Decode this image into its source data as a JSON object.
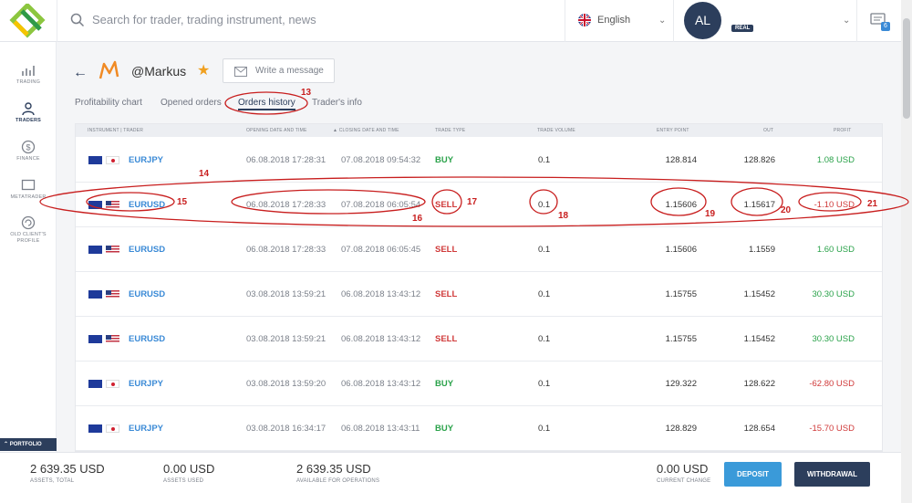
{
  "search": {
    "placeholder": "Search for trader, trading instrument, news"
  },
  "language": {
    "label": "English"
  },
  "account": {
    "initials": "AL",
    "badge": "REAL"
  },
  "messages": {
    "count": "6"
  },
  "sidebar": {
    "items": [
      {
        "label": "TRADING",
        "icon": "chart-icon"
      },
      {
        "label": "TRADERS",
        "icon": "traders-icon"
      },
      {
        "label": "FINANCE",
        "icon": "dollar-icon"
      },
      {
        "label": "METATRADER",
        "icon": "monitor-icon"
      },
      {
        "label": "OLD CLIENT'S PROFILE",
        "icon": "refresh-icon"
      }
    ],
    "portfolio": "PORTFOLIO"
  },
  "trader": {
    "name": "@Markus",
    "write_message": "Write a message"
  },
  "tabs": [
    {
      "label": "Profitability chart"
    },
    {
      "label": "Opened orders"
    },
    {
      "label": "Orders history"
    },
    {
      "label": "Trader's info"
    }
  ],
  "table": {
    "headers": {
      "instrument": "INSTRUMENT | TRADER",
      "opening": "OPENING DATE AND TIME",
      "closing": "▲ CLOSING DATE AND TIME",
      "type": "TRADE TYPE",
      "volume": "TRADE VOLUME",
      "entry": "ENTRY POINT",
      "out": "OUT",
      "profit": "PROFIT"
    },
    "rows": [
      {
        "instrument": "EURJPY",
        "quote_flag": "jp",
        "opening": "06.08.2018 17:28:31",
        "closing": "07.08.2018 09:54:32",
        "type": "BUY",
        "volume": "0.1",
        "entry": "128.814",
        "out": "128.826",
        "profit": "1.08 USD"
      },
      {
        "instrument": "EURUSD",
        "quote_flag": "us",
        "opening": "06.08.2018 17:28:33",
        "closing": "07.08.2018 06:05:54",
        "type": "SELL",
        "volume": "0.1",
        "entry": "1.15606",
        "out": "1.15617",
        "profit": "-1.10 USD"
      },
      {
        "instrument": "EURUSD",
        "quote_flag": "us",
        "opening": "06.08.2018 17:28:33",
        "closing": "07.08.2018 06:05:45",
        "type": "SELL",
        "volume": "0.1",
        "entry": "1.15606",
        "out": "1.1559",
        "profit": "1.60 USD"
      },
      {
        "instrument": "EURUSD",
        "quote_flag": "us",
        "opening": "03.08.2018 13:59:21",
        "closing": "06.08.2018 13:43:12",
        "type": "SELL",
        "volume": "0.1",
        "entry": "1.15755",
        "out": "1.15452",
        "profit": "30.30 USD"
      },
      {
        "instrument": "EURUSD",
        "quote_flag": "us",
        "opening": "03.08.2018 13:59:21",
        "closing": "06.08.2018 13:43:12",
        "type": "SELL",
        "volume": "0.1",
        "entry": "1.15755",
        "out": "1.15452",
        "profit": "30.30 USD"
      },
      {
        "instrument": "EURJPY",
        "quote_flag": "jp",
        "opening": "03.08.2018 13:59:20",
        "closing": "06.08.2018 13:43:12",
        "type": "BUY",
        "volume": "0.1",
        "entry": "129.322",
        "out": "128.622",
        "profit": "-62.80 USD"
      },
      {
        "instrument": "EURJPY",
        "quote_flag": "jp",
        "opening": "03.08.2018 16:34:17",
        "closing": "06.08.2018 13:43:11",
        "type": "BUY",
        "volume": "0.1",
        "entry": "128.829",
        "out": "128.654",
        "profit": "-15.70 USD"
      }
    ]
  },
  "footer": {
    "assets_total": {
      "value": "2 639.35 USD",
      "label": "ASSETS, TOTAL"
    },
    "assets_used": {
      "value": "0.00 USD",
      "label": "ASSETS USED"
    },
    "available": {
      "value": "2 639.35 USD",
      "label": "AVAILABLE FOR OPERATIONS"
    },
    "current_change": {
      "value": "0.00 USD",
      "label": "CURRENT CHANGE"
    },
    "deposit": "DEPOSIT",
    "withdrawal": "WITHDRAWAL"
  },
  "annotations": [
    "13",
    "14",
    "15",
    "16",
    "17",
    "18",
    "19",
    "20",
    "21"
  ],
  "colors": {
    "brand": "#2c3e5c",
    "accent": "#3a8ad6",
    "buy": "#2aa24a",
    "sell": "#d03a3a",
    "annotation": "#c81e1e"
  }
}
